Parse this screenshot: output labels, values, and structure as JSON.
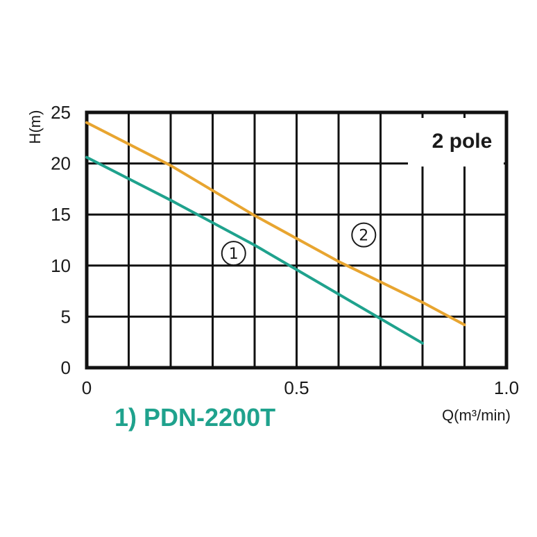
{
  "chart_data": {
    "type": "line",
    "xlabel": "Q(m³/min)",
    "ylabel": "H(m)",
    "xlim": [
      0,
      1.0
    ],
    "ylim": [
      0,
      25
    ],
    "x_ticks": [
      0,
      0.5,
      1.0
    ],
    "x_tick_labels": [
      "0",
      "0.5",
      "1.0"
    ],
    "y_ticks": [
      0,
      5,
      10,
      15,
      20,
      25
    ],
    "y_tick_labels": [
      "0",
      "5",
      "10",
      "15",
      "20",
      "25"
    ],
    "grid": true,
    "annotation": "2 pole",
    "series": [
      {
        "marker_label": "①",
        "color": "#1fa28d",
        "x": [
          0,
          0.2,
          0.4,
          0.6,
          0.7,
          0.8
        ],
        "y": [
          20.6,
          16.4,
          12.0,
          7.2,
          4.8,
          2.4
        ]
      },
      {
        "marker_label": "②",
        "color": "#e8a530",
        "x": [
          0,
          0.2,
          0.4,
          0.6,
          0.8,
          0.9
        ],
        "y": [
          24.0,
          19.8,
          14.9,
          10.4,
          6.4,
          4.2
        ]
      }
    ],
    "legend_entries": [
      {
        "text": "1) PDN-2200T",
        "color": "#1fa28d"
      }
    ]
  }
}
